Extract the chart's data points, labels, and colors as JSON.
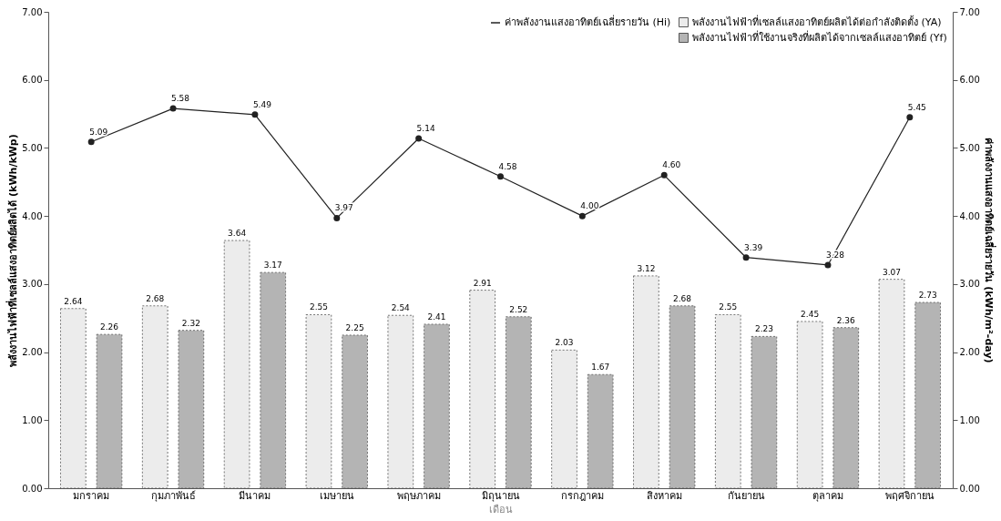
{
  "chart_data": {
    "type": "bar",
    "xlabel": "เดือน",
    "ylabel": "พลังงานไฟฟ้าที่เซลล์แสงอาทิตย์ผลิตได้ (kWh/kWp)",
    "y2label": "ค่าพลังงานแสงอาทิตย์เฉลี่ยรายวัน (kWh/m²-day)",
    "categories": [
      "มกราคม",
      "กุมภาพันธ์",
      "มีนาคม",
      "เมษายน",
      "พฤษภาคม",
      "มิถุนายน",
      "กรกฎาคม",
      "สิงหาคม",
      "กันยายน",
      "ตุลาคม",
      "พฤศจิกายน"
    ],
    "series": [
      {
        "name": "พลังงานไฟฟ้าที่เซลล์แสงอาทิตย์ผลิตได้ต่อกำลังติดตั้ง (YA)",
        "color": "#ececec",
        "values": [
          2.64,
          2.68,
          3.64,
          2.55,
          2.54,
          2.91,
          2.03,
          3.12,
          2.55,
          2.45,
          3.07
        ],
        "value_labels": [
          "2.64",
          "2.68",
          "3.64",
          "2.55",
          "2.54",
          "2.91",
          "2.03",
          "3.12",
          "2.55",
          "2.45",
          "3.07"
        ]
      },
      {
        "name": "พลังงานไฟฟ้าที่ใช้งานจริงที่ผลิตได้จากเซลล์แสงอาทิตย์ (Yf)",
        "color": "#b4b4b4",
        "values": [
          2.26,
          2.32,
          3.17,
          2.25,
          2.41,
          2.52,
          1.67,
          2.68,
          2.23,
          2.36,
          2.73
        ],
        "value_labels": [
          "2.26",
          "2.32",
          "3.17",
          "2.25",
          "2.41",
          "2.52",
          "1.67",
          "2.68",
          "2.23",
          "2.36",
          "2.73"
        ]
      },
      {
        "name": "ค่าพลังงานแสงอาทิตย์เฉลี่ยรายวัน (Hi)",
        "type": "line",
        "axis": "y2",
        "color": "#222222",
        "values": [
          5.09,
          5.58,
          5.49,
          3.97,
          5.14,
          4.58,
          4.0,
          4.6,
          3.39,
          3.28,
          5.45
        ],
        "value_labels": [
          "5.09",
          "5.58",
          "5.49",
          "3.97",
          "5.14",
          "4.58",
          "4.00",
          "4.60",
          "3.39",
          "3.28",
          "5.45"
        ]
      }
    ],
    "ylim": [
      0,
      7
    ],
    "yticks": [
      {
        "value": 0,
        "label": "0.00"
      },
      {
        "value": 1,
        "label": "1.00"
      },
      {
        "value": 2,
        "label": "2.00"
      },
      {
        "value": 3,
        "label": "3.00"
      },
      {
        "value": 4,
        "label": "4.00"
      },
      {
        "value": 5,
        "label": "5.00"
      },
      {
        "value": 6,
        "label": "6.00"
      },
      {
        "value": 7,
        "label": "7.00"
      }
    ],
    "y2lim": [
      0,
      7
    ],
    "y2ticks": [
      {
        "value": 0,
        "label": "0.00"
      },
      {
        "value": 1,
        "label": "1.00"
      },
      {
        "value": 2,
        "label": "2.00"
      },
      {
        "value": 3,
        "label": "3.00"
      },
      {
        "value": 4,
        "label": "4.00"
      },
      {
        "value": 5,
        "label": "5.00"
      },
      {
        "value": 6,
        "label": "6.00"
      },
      {
        "value": 7,
        "label": "7.00"
      }
    ],
    "marker": "circle",
    "line_style": "solid",
    "grid": false,
    "legend": "top right"
  }
}
